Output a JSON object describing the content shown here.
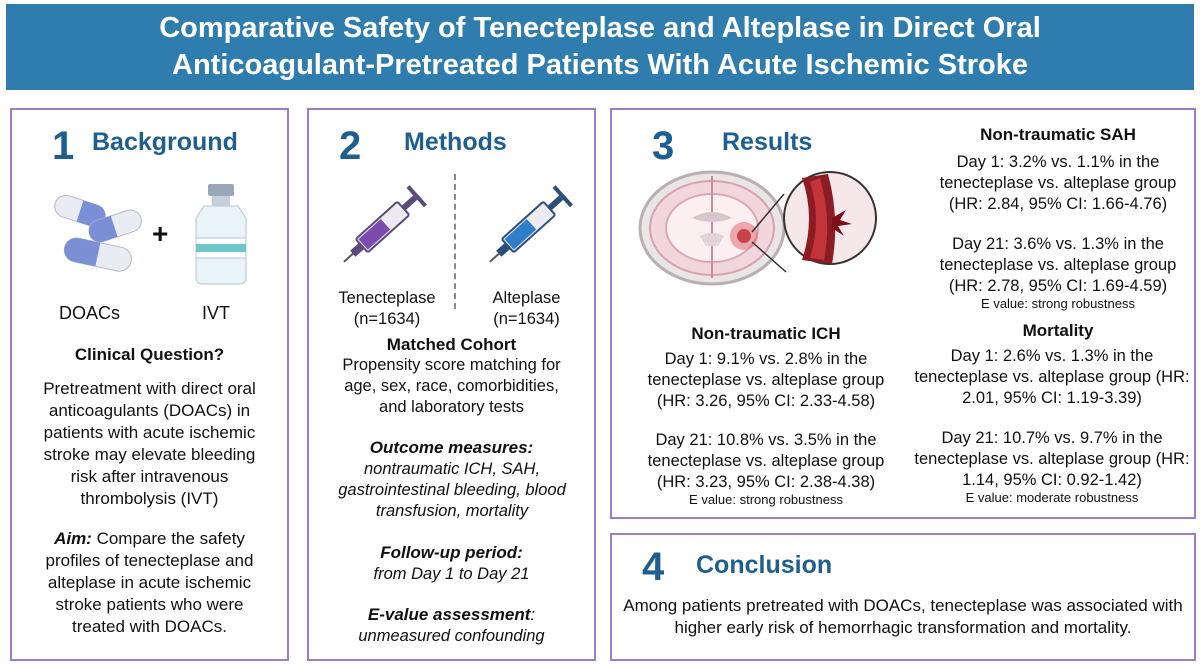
{
  "title": {
    "line1": "Comparative Safety of Tenecteplase and Alteplase in Direct Oral",
    "line2": "Anticoagulant-Pretreated Patients With Acute Ischemic Stroke"
  },
  "background": {
    "number": "1",
    "heading": "Background",
    "plus": "+",
    "doacs_label": "DOACs",
    "ivt_label": "IVT",
    "question_heading": "Clinical Question?",
    "question_text": "Pretreatment with direct oral anticoagulants (DOACs) in patients with acute ischemic stroke may elevate bleeding risk after intravenous thrombolysis (IVT)",
    "aim_label": "Aim:",
    "aim_text": " Compare the safety profiles of tenecteplase and alteplase in acute ischemic stroke patients who were treated with DOACs."
  },
  "methods": {
    "number": "2",
    "heading": "Methods",
    "tenecteplase_label": "Tenecteplase",
    "tenecteplase_n": "(n=1634)",
    "alteplase_label": "Alteplase",
    "alteplase_n": "(n=1634)",
    "matched_heading": "Matched Cohort",
    "matched_text": "Propensity score matching for age, sex, race, comorbidities, and laboratory tests",
    "outcome_heading": "Outcome measures:",
    "outcome_text": "nontraumatic ICH, SAH, gastrointestinal bleeding, blood transfusion, mortality",
    "followup_heading": "Follow-up period:",
    "followup_text": "from Day 1 to Day 21",
    "evalue_heading": "E-value assessment",
    "evalue_colon": ":",
    "evalue_text": "unmeasured confounding"
  },
  "results": {
    "number": "3",
    "heading": "Results",
    "ich_heading": "Non-traumatic ICH",
    "ich_day1": "Day 1: 9.1% vs. 2.8% in the tenecteplase vs. alteplase group (HR: 3.26, 95% CI: 2.33-4.58)",
    "ich_day21": "Day 21: 10.8% vs. 3.5% in the tenecteplase vs. alteplase group (HR: 3.23, 95% CI: 2.38-4.38)",
    "ich_evalue": "E value: strong robustness",
    "sah_heading": "Non-traumatic SAH",
    "sah_day1": "Day 1: 3.2% vs. 1.1% in the tenecteplase vs. alteplase group (HR: 2.84, 95% CI: 1.66-4.76)",
    "sah_day21": "Day 21: 3.6% vs. 1.3% in the tenecteplase vs. alteplase group (HR: 2.78, 95% CI: 1.69-4.59)",
    "sah_evalue": "E value: strong robustness",
    "mort_heading": "Mortality",
    "mort_day1": "Day 1: 2.6% vs. 1.3% in the tenecteplase vs. alteplase group (HR: 2.01, 95% CI: 1.19-3.39)",
    "mort_day21": "Day 21: 10.7% vs. 9.7% in the tenecteplase vs. alteplase group (HR: 1.14, 95% CI: 0.92-1.42)",
    "mort_evalue": "E value:  moderate robustness"
  },
  "conclusion": {
    "number": "4",
    "heading": "Conclusion",
    "text": "Among patients pretreated with DOACs, tenecteplase was associated with higher early risk of hemorrhagic transformation and mortality."
  },
  "colors": {
    "title_bg": "#2f7cae",
    "heading": "#1f5f8f",
    "panel_border": "#9b7cc8",
    "tenecteplase_syringe": "#7b4bb0",
    "alteplase_syringe": "#2f7cc8",
    "capsule": "#7b8fd6",
    "hemorrhage": "#c2333a"
  },
  "icons": [
    "capsule-pill-icon",
    "iv-vial-icon",
    "syringe-icon",
    "brain-hemorrhage-icon",
    "vessel-rupture-icon"
  ]
}
